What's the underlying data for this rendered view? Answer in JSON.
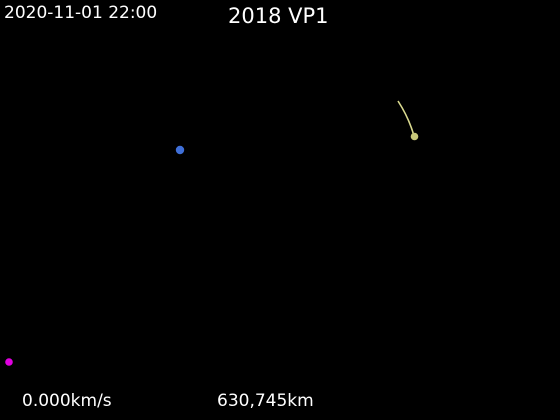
{
  "header": {
    "timestamp": "2020-11-01 22:00",
    "title": "2018 VP1"
  },
  "footer": {
    "speed": "0.000km/s",
    "distance": "630,745km"
  },
  "bodies": {
    "earth": {
      "color": "#3f6fd8"
    },
    "asteroid": {
      "color": "#c8c87a"
    },
    "asteroid_trail": {
      "color": "#d9d98f"
    },
    "sun_marker": {
      "color": "#e000e0"
    }
  }
}
